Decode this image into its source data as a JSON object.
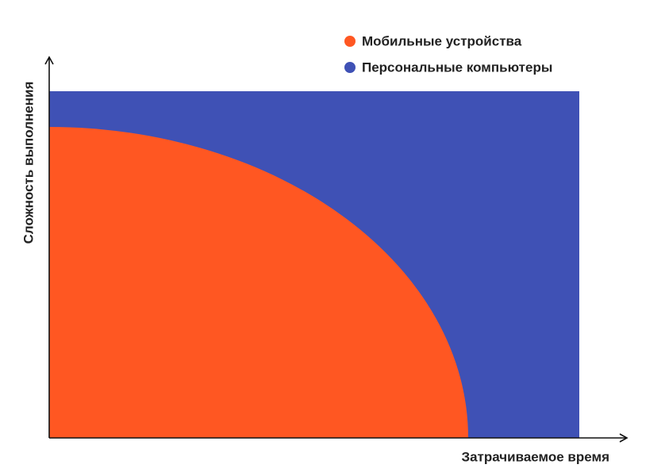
{
  "legend": [
    {
      "label": "Мобильные устройства"
    },
    {
      "label": "Персональные компьютеры"
    }
  ],
  "axes": {
    "x_label": "Затрачиваемое время",
    "y_label": "Сложность выполнения"
  }
}
